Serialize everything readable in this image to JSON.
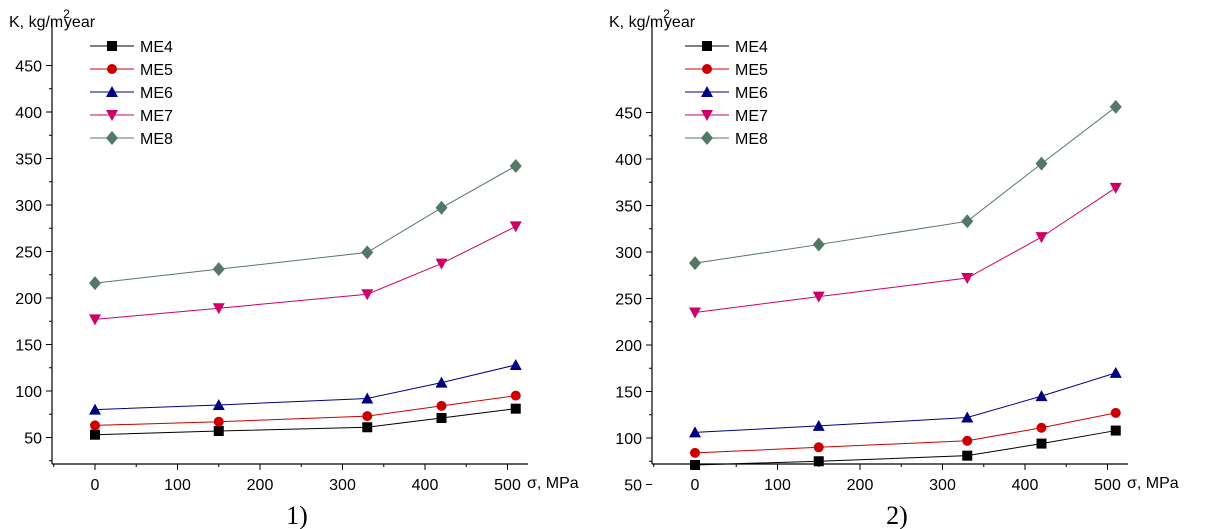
{
  "panels": [
    {
      "caption": "1)",
      "ylabel_prefix": "K, kg/m",
      "ylabel_sup": "2",
      "ylabel_suffix": "year",
      "xlabel": "σ, MPa"
    },
    {
      "caption": "2)",
      "ylabel_prefix": "K, kg/m",
      "ylabel_sup": "2",
      "ylabel_suffix": "year",
      "xlabel": "σ, MPa"
    }
  ],
  "chart_data": [
    {
      "type": "line",
      "title": "",
      "xlabel": "σ, MPa",
      "ylabel": "K, kg/m2year",
      "x": [
        0,
        150,
        330,
        420,
        510
      ],
      "xticks": [
        0,
        100,
        200,
        300,
        400,
        500
      ],
      "yticks": [
        50,
        100,
        150,
        200,
        250,
        300,
        350,
        400,
        450
      ],
      "xlim": [
        -60,
        560
      ],
      "ylim": [
        20,
        470
      ],
      "grid": false,
      "legend": "top-left",
      "series": [
        {
          "name": "ME4",
          "marker": "square",
          "color": "#000000",
          "values": [
            53,
            57,
            61,
            71,
            81
          ]
        },
        {
          "name": "ME5",
          "marker": "circle",
          "color": "#cc0000",
          "values": [
            63,
            67,
            73,
            84,
            95
          ]
        },
        {
          "name": "ME6",
          "marker": "triangle-up",
          "color": "#000080",
          "values": [
            80,
            85,
            92,
            109,
            128
          ]
        },
        {
          "name": "ME7",
          "marker": "triangle-down",
          "color": "#cc0066",
          "values": [
            177,
            189,
            204,
            237,
            277
          ]
        },
        {
          "name": "ME8",
          "marker": "diamond",
          "color": "#557766",
          "values": [
            216,
            231,
            249,
            297,
            342
          ]
        }
      ]
    },
    {
      "type": "line",
      "title": "",
      "xlabel": "σ, MPa",
      "ylabel": "K, kg/m2year",
      "x": [
        0,
        150,
        330,
        420,
        510
      ],
      "xticks": [
        0,
        100,
        200,
        300,
        400,
        500
      ],
      "yticks": [
        50,
        100,
        150,
        200,
        250,
        300,
        350,
        400,
        450
      ],
      "xlim": [
        -60,
        560
      ],
      "ylim": [
        20,
        470
      ],
      "grid": false,
      "legend": "top-left",
      "series": [
        {
          "name": "ME4",
          "marker": "square",
          "color": "#000000",
          "values": [
            71,
            75,
            81,
            94,
            108
          ]
        },
        {
          "name": "ME5",
          "marker": "circle",
          "color": "#cc0000",
          "values": [
            84,
            90,
            97,
            111,
            127
          ]
        },
        {
          "name": "ME6",
          "marker": "triangle-up",
          "color": "#000080",
          "values": [
            106,
            113,
            122,
            145,
            170
          ]
        },
        {
          "name": "ME7",
          "marker": "triangle-down",
          "color": "#cc0066",
          "values": [
            235,
            252,
            272,
            316,
            369
          ]
        },
        {
          "name": "ME8",
          "marker": "diamond",
          "color": "#557766",
          "values": [
            288,
            308,
            333,
            395,
            456
          ]
        }
      ]
    }
  ]
}
